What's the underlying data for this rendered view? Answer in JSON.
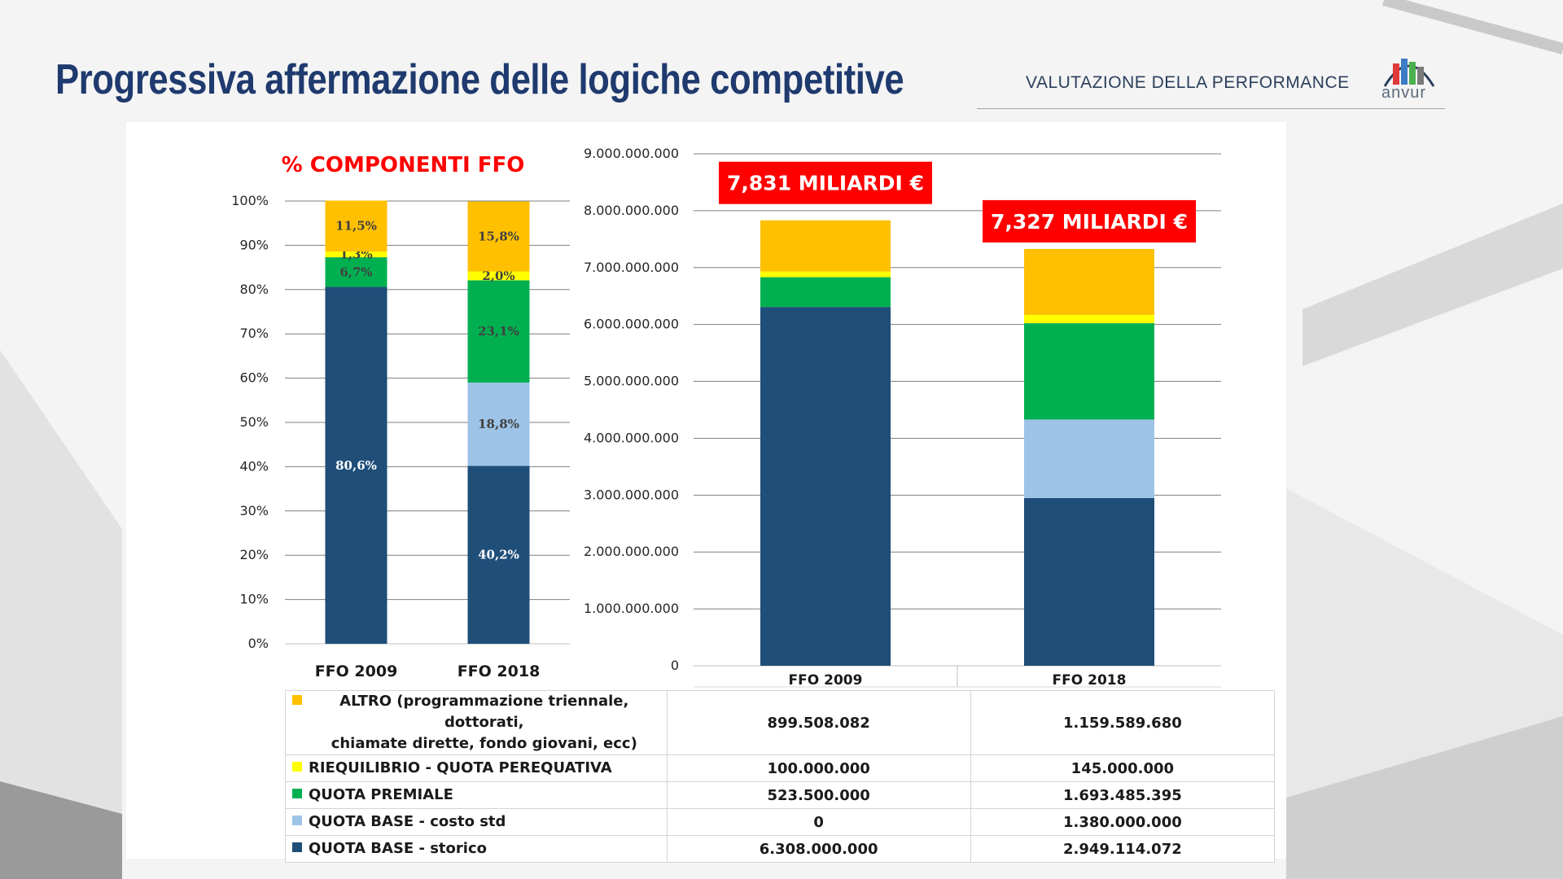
{
  "header": {
    "title": "Progressiva affermazione delle logiche competitive",
    "section": "VALUTAZIONE DELLA PERFORMANCE",
    "logo_text": "anvur"
  },
  "colors": {
    "title": "#1f3a6e",
    "altro": "#ffc000",
    "riequilibrio": "#ffff00",
    "premiale": "#00b050",
    "costo_std": "#9dc3e6",
    "storico": "#1f4e79",
    "callout_bg": "#ff0000",
    "chart_title": "#ff0000"
  },
  "chart_data": [
    {
      "type": "bar",
      "stacked": true,
      "title": "% COMPONENTI FFO",
      "categories": [
        "FFO 2009",
        "FFO 2018"
      ],
      "ylim": [
        0,
        100
      ],
      "yticks": [
        0,
        10,
        20,
        30,
        40,
        50,
        60,
        70,
        80,
        90,
        100
      ],
      "ytick_labels": [
        "0%",
        "10%",
        "20%",
        "30%",
        "40%",
        "50%",
        "60%",
        "70%",
        "80%",
        "90%",
        "100%"
      ],
      "grid": true,
      "series": [
        {
          "name": "QUOTA BASE - storico",
          "color": "#1f4e79",
          "values": [
            80.6,
            40.2
          ],
          "labels": [
            "80,6%",
            "40,2%"
          ],
          "label_color": "#ffffff"
        },
        {
          "name": "QUOTA BASE - costo std",
          "color": "#9dc3e6",
          "values": [
            0,
            18.8
          ],
          "labels": [
            "",
            "18,8%"
          ],
          "label_color": "#404040"
        },
        {
          "name": "QUOTA PREMIALE",
          "color": "#00b050",
          "values": [
            6.7,
            23.1
          ],
          "labels": [
            "6,7%",
            "23,1%"
          ],
          "label_color": "#404040"
        },
        {
          "name": "RIEQUILIBRIO - QUOTA PEREQUATIVA",
          "color": "#ffff00",
          "values": [
            1.3,
            2.0
          ],
          "labels": [
            "1,3%",
            "2,0%"
          ],
          "label_color": "#404040"
        },
        {
          "name": "ALTRO",
          "color": "#ffc000",
          "values": [
            11.5,
            15.8
          ],
          "labels": [
            "11,5%",
            "15,8%"
          ],
          "label_color": "#404040"
        }
      ]
    },
    {
      "type": "bar",
      "stacked": true,
      "title": "",
      "categories": [
        "FFO 2009",
        "FFO 2018"
      ],
      "ylim": [
        0,
        9000000000
      ],
      "yticks": [
        0,
        1000000000,
        2000000000,
        3000000000,
        4000000000,
        5000000000,
        6000000000,
        7000000000,
        8000000000,
        9000000000
      ],
      "ytick_labels": [
        "0",
        "1.000.000.000",
        "2.000.000.000",
        "3.000.000.000",
        "4.000.000.000",
        "5.000.000.000",
        "6.000.000.000",
        "7.000.000.000",
        "8.000.000.000",
        "9.000.000.000"
      ],
      "grid": true,
      "callouts": [
        "7,831 MILIARDI €",
        "7,327 MILIARDI €"
      ],
      "series": [
        {
          "name": "QUOTA BASE - storico",
          "color": "#1f4e79",
          "values": [
            6308000000,
            2949114072
          ]
        },
        {
          "name": "QUOTA BASE - costo std",
          "color": "#9dc3e6",
          "values": [
            0,
            1380000000
          ]
        },
        {
          "name": "QUOTA PREMIALE",
          "color": "#00b050",
          "values": [
            523500000,
            1693485395
          ]
        },
        {
          "name": "RIEQUILIBRIO - QUOTA PEREQUATIVA",
          "color": "#ffff00",
          "values": [
            100000000,
            145000000
          ]
        },
        {
          "name": "ALTRO",
          "color": "#ffc000",
          "values": [
            899508082,
            1159589680
          ]
        }
      ]
    }
  ],
  "table": {
    "rows": [
      {
        "label_line1": "ALTRO (programmazione triennale, dottorati,",
        "label_line2": "chiamate dirette, fondo giovani, ecc)",
        "swatch": "#ffc000",
        "v2009": "899.508.082",
        "v2018": "1.159.589.680"
      },
      {
        "label_line1": "RIEQUILIBRIO - QUOTA PEREQUATIVA",
        "swatch": "#ffff00",
        "v2009": "100.000.000",
        "v2018": "145.000.000"
      },
      {
        "label_line1": "QUOTA PREMIALE",
        "swatch": "#00b050",
        "v2009": "523.500.000",
        "v2018": "1.693.485.395"
      },
      {
        "label_line1": "QUOTA BASE - costo std",
        "swatch": "#9dc3e6",
        "v2009": "0",
        "v2018": "1.380.000.000"
      },
      {
        "label_line1": "QUOTA BASE - storico",
        "swatch": "#1f4e79",
        "v2009": "6.308.000.000",
        "v2018": "2.949.114.072"
      }
    ]
  }
}
